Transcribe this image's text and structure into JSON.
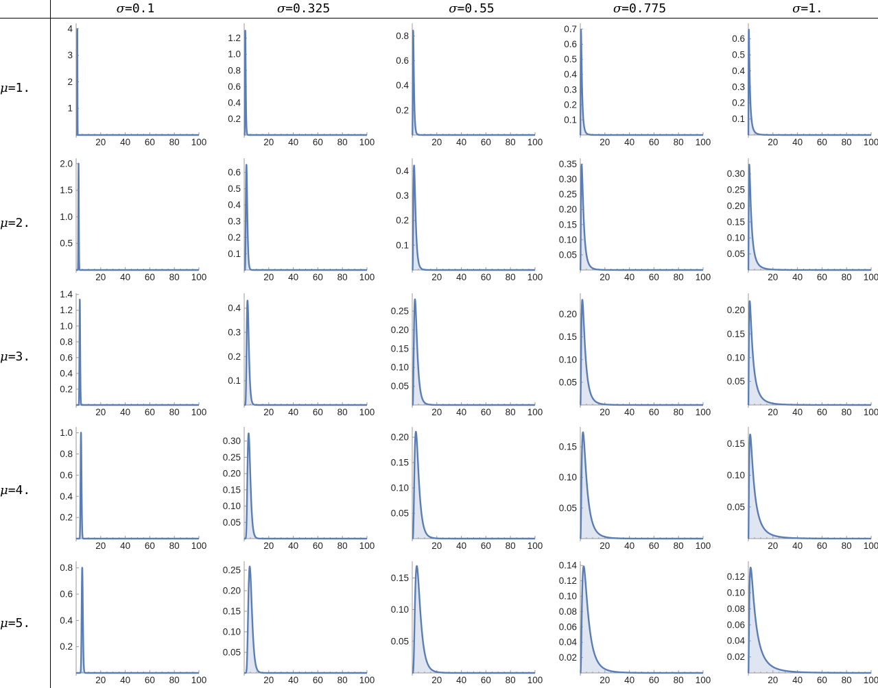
{
  "column_headers": [
    {
      "symbol": "σ",
      "eq": "=",
      "value": "0.1"
    },
    {
      "symbol": "σ",
      "eq": "=",
      "value": "0.325"
    },
    {
      "symbol": "σ",
      "eq": "=",
      "value": "0.55"
    },
    {
      "symbol": "σ",
      "eq": "=",
      "value": "0.775"
    },
    {
      "symbol": "σ",
      "eq": "=",
      "value": "1."
    }
  ],
  "row_headers": [
    {
      "symbol": "μ",
      "eq": "=",
      "value": "1."
    },
    {
      "symbol": "μ",
      "eq": "=",
      "value": "2."
    },
    {
      "symbol": "μ",
      "eq": "=",
      "value": "3."
    },
    {
      "symbol": "μ",
      "eq": "=",
      "value": "4."
    },
    {
      "symbol": "μ",
      "eq": "=",
      "value": "5."
    }
  ],
  "colors": {
    "line": "#5a7db5",
    "fill": "#dfe5f1",
    "axis": "#999999"
  },
  "chart_data": {
    "type": "area",
    "xlim": [
      0,
      100
    ],
    "x_ticks": [
      "20",
      "40",
      "60",
      "80",
      "100"
    ],
    "grid": false,
    "panels": [
      [
        {
          "mu": 1,
          "sigma": 0.1,
          "ylim": [
            0,
            4.1
          ],
          "yticks": [
            "1",
            "2",
            "3",
            "4"
          ]
        },
        {
          "mu": 1,
          "sigma": 0.325,
          "ylim": [
            0,
            1.35
          ],
          "yticks": [
            "0.2",
            "0.4",
            "0.6",
            "0.8",
            "1.0",
            "1.2"
          ]
        },
        {
          "mu": 1,
          "sigma": 0.55,
          "ylim": [
            0,
            0.88
          ],
          "yticks": [
            "0.2",
            "0.4",
            "0.6",
            "0.8"
          ]
        },
        {
          "mu": 1,
          "sigma": 0.775,
          "ylim": [
            0,
            0.72
          ],
          "yticks": [
            "0.1",
            "0.2",
            "0.3",
            "0.4",
            "0.5",
            "0.6",
            "0.7"
          ]
        },
        {
          "mu": 1,
          "sigma": 1.0,
          "ylim": [
            0,
            0.68
          ],
          "yticks": [
            "0.1",
            "0.2",
            "0.3",
            "0.4",
            "0.5",
            "0.6"
          ]
        }
      ],
      [
        {
          "mu": 2,
          "sigma": 0.1,
          "ylim": [
            0,
            2.05
          ],
          "yticks": [
            "0.5",
            "1.0",
            "1.5",
            "2.0"
          ]
        },
        {
          "mu": 2,
          "sigma": 0.325,
          "ylim": [
            0,
            0.67
          ],
          "yticks": [
            "0.1",
            "0.2",
            "0.3",
            "0.4",
            "0.5",
            "0.6"
          ]
        },
        {
          "mu": 2,
          "sigma": 0.55,
          "ylim": [
            0,
            0.44
          ],
          "yticks": [
            "0.1",
            "0.2",
            "0.3",
            "0.4"
          ]
        },
        {
          "mu": 2,
          "sigma": 0.775,
          "ylim": [
            0,
            0.36
          ],
          "yticks": [
            "0.05",
            "0.10",
            "0.15",
            "0.20",
            "0.25",
            "0.30",
            "0.35"
          ]
        },
        {
          "mu": 2,
          "sigma": 1.0,
          "ylim": [
            0,
            0.34
          ],
          "yticks": [
            "0.05",
            "0.10",
            "0.15",
            "0.20",
            "0.25",
            "0.30"
          ]
        }
      ],
      [
        {
          "mu": 3,
          "sigma": 0.1,
          "ylim": [
            0,
            1.38
          ],
          "yticks": [
            "0.2",
            "0.4",
            "0.6",
            "0.8",
            "1.0",
            "1.2",
            "1.4"
          ]
        },
        {
          "mu": 3,
          "sigma": 0.325,
          "ylim": [
            0,
            0.45
          ],
          "yticks": [
            "0.1",
            "0.2",
            "0.3",
            "0.4"
          ]
        },
        {
          "mu": 3,
          "sigma": 0.55,
          "ylim": [
            0,
            0.29
          ],
          "yticks": [
            "0.05",
            "0.10",
            "0.15",
            "0.20",
            "0.25"
          ]
        },
        {
          "mu": 3,
          "sigma": 0.775,
          "ylim": [
            0,
            0.24
          ],
          "yticks": [
            "0.05",
            "0.10",
            "0.15",
            "0.20"
          ]
        },
        {
          "mu": 3,
          "sigma": 1.0,
          "ylim": [
            0,
            0.23
          ],
          "yticks": [
            "0.05",
            "0.10",
            "0.15",
            "0.20"
          ]
        }
      ],
      [
        {
          "mu": 4,
          "sigma": 0.1,
          "ylim": [
            0,
            1.03
          ],
          "yticks": [
            "0.2",
            "0.4",
            "0.6",
            "0.8",
            "1.0"
          ]
        },
        {
          "mu": 4,
          "sigma": 0.325,
          "ylim": [
            0,
            0.335
          ],
          "yticks": [
            "0.05",
            "0.10",
            "0.15",
            "0.20",
            "0.25",
            "0.30"
          ]
        },
        {
          "mu": 4,
          "sigma": 0.55,
          "ylim": [
            0,
            0.215
          ],
          "yticks": [
            "0.05",
            "0.10",
            "0.15",
            "0.20"
          ]
        },
        {
          "mu": 4,
          "sigma": 0.775,
          "ylim": [
            0,
            0.178
          ],
          "yticks": [
            "0.05",
            "0.10",
            "0.15"
          ]
        },
        {
          "mu": 4,
          "sigma": 1.0,
          "ylim": [
            0,
            0.172
          ],
          "yticks": [
            "0.05",
            "0.10",
            "0.15"
          ]
        }
      ],
      [
        {
          "mu": 5,
          "sigma": 0.1,
          "ylim": [
            0,
            0.83
          ],
          "yticks": [
            "0.2",
            "0.4",
            "0.6",
            "0.8"
          ]
        },
        {
          "mu": 5,
          "sigma": 0.325,
          "ylim": [
            0,
            0.265
          ],
          "yticks": [
            "0.05",
            "0.10",
            "0.15",
            "0.20",
            "0.25"
          ]
        },
        {
          "mu": 5,
          "sigma": 0.55,
          "ylim": [
            0,
            0.172
          ],
          "yticks": [
            "0.05",
            "0.10",
            "0.15"
          ]
        },
        {
          "mu": 5,
          "sigma": 0.775,
          "ylim": [
            0,
            0.142
          ],
          "yticks": [
            "0.02",
            "0.04",
            "0.06",
            "0.08",
            "0.10",
            "0.12",
            "0.14"
          ]
        },
        {
          "mu": 5,
          "sigma": 1.0,
          "ylim": [
            0,
            0.136
          ],
          "yticks": [
            "0.02",
            "0.04",
            "0.06",
            "0.08",
            "0.10",
            "0.12"
          ]
        }
      ]
    ]
  }
}
